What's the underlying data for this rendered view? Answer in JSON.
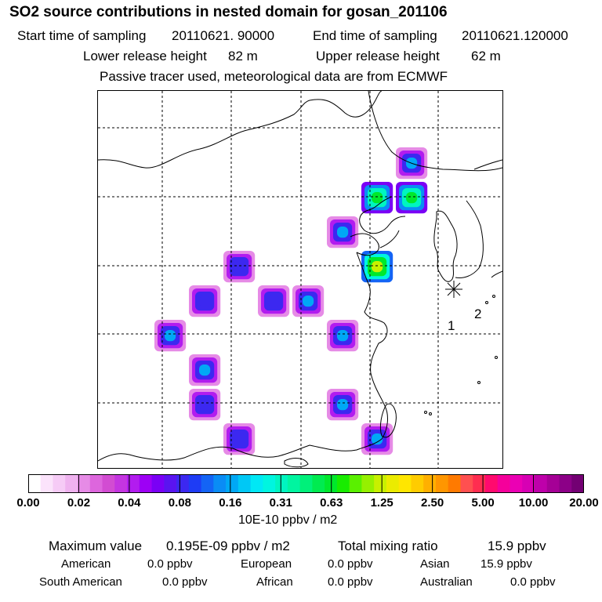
{
  "header": {
    "title": "SO2 source contributions in nested domain for gosan_201106",
    "start_label": "Start time of sampling",
    "start_value": "20110621. 90000",
    "end_label": "End time of sampling",
    "end_value": "20110621.120000",
    "lower_label": "Lower release height",
    "lower_value": "82 m",
    "upper_label": "Upper release height",
    "upper_value": "62 m",
    "note": "Passive tracer used, meteorological data are from ECMWF"
  },
  "chart_data": {
    "type": "heatmap",
    "title": "SO2 source contributions in nested domain for gosan_201106",
    "grid": true,
    "colorbar": {
      "ticks": [
        "0.00",
        "0.02",
        "0.04",
        "0.08",
        "0.16",
        "0.31",
        "0.63",
        "1.25",
        "2.50",
        "5.00",
        "10.00",
        "20.00"
      ],
      "colors": [
        "#ffffff",
        "#fbe3fb",
        "#f6cbf6",
        "#efb2ef",
        "#e68be6",
        "#dd66dd",
        "#d24cd2",
        "#c435e0",
        "#b21cef",
        "#9d00f5",
        "#7a00f5",
        "#5a14f0",
        "#3c28f0",
        "#1e3cf5",
        "#1464f5",
        "#0a8cf5",
        "#00a8f5",
        "#00c8f5",
        "#00e8f5",
        "#00f5e0",
        "#00f5c0",
        "#00f5a0",
        "#00f07a",
        "#00eb50",
        "#00e82c",
        "#18ec00",
        "#5af000",
        "#96f000",
        "#c8f000",
        "#ebeb00",
        "#ffe600",
        "#ffcc00",
        "#ffb000",
        "#ff9600",
        "#ff7a00",
        "#ff5050",
        "#ff2d50",
        "#ff0a6e",
        "#f5009b",
        "#eb00b4",
        "#d700b4",
        "#be00aa",
        "#a50096",
        "#8c0087",
        "#730073"
      ],
      "units": "10E-10 ppbv / m2"
    },
    "markers": [
      {
        "label": "1",
        "role": "receptor-label"
      },
      {
        "label": "2",
        "role": "receptor-label"
      }
    ],
    "hotspots": [
      {
        "cell": [
          9,
          2
        ],
        "level": 0.16
      },
      {
        "cell": [
          7,
          4
        ],
        "level": 0.16
      },
      {
        "cell": [
          6,
          6
        ],
        "level": 0.16
      },
      {
        "cell": [
          7,
          7
        ],
        "level": 0.16
      },
      {
        "cell": [
          4,
          5
        ],
        "level": 0.08
      },
      {
        "cell": [
          5,
          6
        ],
        "level": 0.08
      },
      {
        "cell": [
          3,
          6
        ],
        "level": 0.08
      },
      {
        "cell": [
          2,
          7
        ],
        "level": 0.16
      },
      {
        "cell": [
          8,
          3
        ],
        "level": 0.63
      },
      {
        "cell": [
          8,
          5
        ],
        "level": 1.25
      },
      {
        "cell": [
          7,
          9
        ],
        "level": 0.16
      },
      {
        "cell": [
          9,
          3
        ],
        "level": 0.63
      },
      {
        "cell": [
          3,
          8
        ],
        "level": 0.16
      },
      {
        "cell": [
          8,
          10
        ],
        "level": 0.16
      },
      {
        "cell": [
          4,
          10
        ],
        "level": 0.08
      },
      {
        "cell": [
          3,
          9
        ],
        "level": 0.08
      }
    ]
  },
  "summary": {
    "max_label": "Maximum value",
    "max_value": "0.195E-09 ppbv / m2",
    "total_label": "Total mixing ratio",
    "total_value": "15.9 ppbv"
  },
  "regions": [
    {
      "name": "American",
      "value": "0.0 ppbv"
    },
    {
      "name": "European",
      "value": "0.0 ppbv"
    },
    {
      "name": "Asian",
      "value": "15.9 ppbv"
    },
    {
      "name": "South American",
      "value": "0.0 ppbv"
    },
    {
      "name": "African",
      "value": "0.0 ppbv"
    },
    {
      "name": "Australian",
      "value": "0.0 ppbv"
    }
  ]
}
